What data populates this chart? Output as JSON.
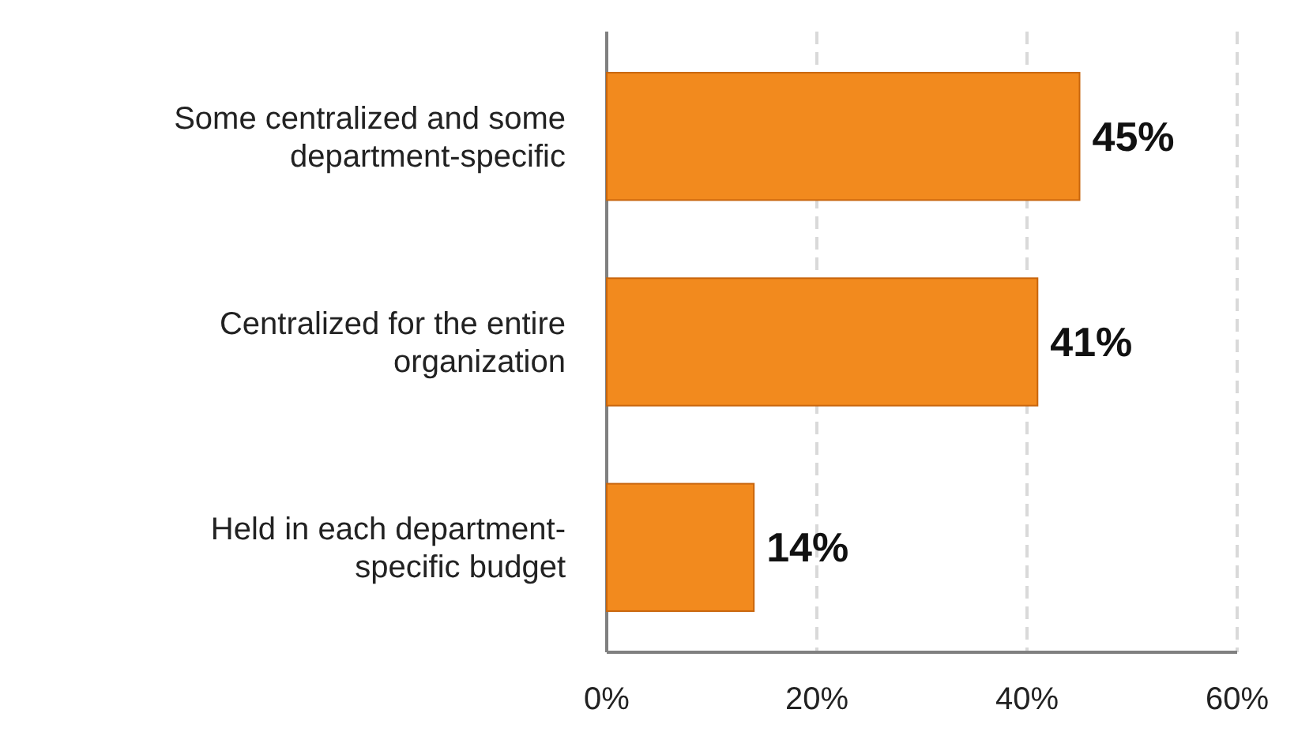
{
  "chart_data": {
    "type": "bar",
    "orientation": "horizontal",
    "categories": [
      "Some centralized and some department-specific",
      "Centralized for the entire organization",
      "Held in each department-specific budget"
    ],
    "values": [
      45,
      41,
      14
    ],
    "value_labels": [
      "45%",
      "41%",
      "14%"
    ],
    "color": "#f28a1e",
    "xlim": [
      0,
      60
    ],
    "xticks": [
      {
        "value": 0,
        "label": "0%"
      },
      {
        "value": 20,
        "label": "20%"
      },
      {
        "value": 40,
        "label": "40%"
      },
      {
        "value": 60,
        "label": "60%"
      }
    ],
    "grid": "x"
  }
}
